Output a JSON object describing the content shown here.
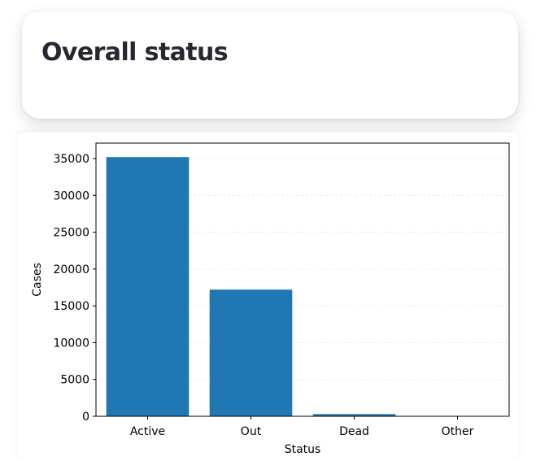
{
  "header": {
    "title": "Overall status"
  },
  "chart_data": {
    "type": "bar",
    "title": "",
    "xlabel": "Status",
    "ylabel": "Cases",
    "categories": [
      "Active",
      "Out",
      "Dead",
      "Other"
    ],
    "values": [
      35200,
      17200,
      300,
      0
    ],
    "ylim": [
      0,
      37100
    ],
    "yticks": [
      0,
      5000,
      10000,
      15000,
      20000,
      25000,
      30000,
      35000
    ],
    "grid": true,
    "bar_color": "#1f77b4",
    "grid_color": "#e8e8e8"
  }
}
